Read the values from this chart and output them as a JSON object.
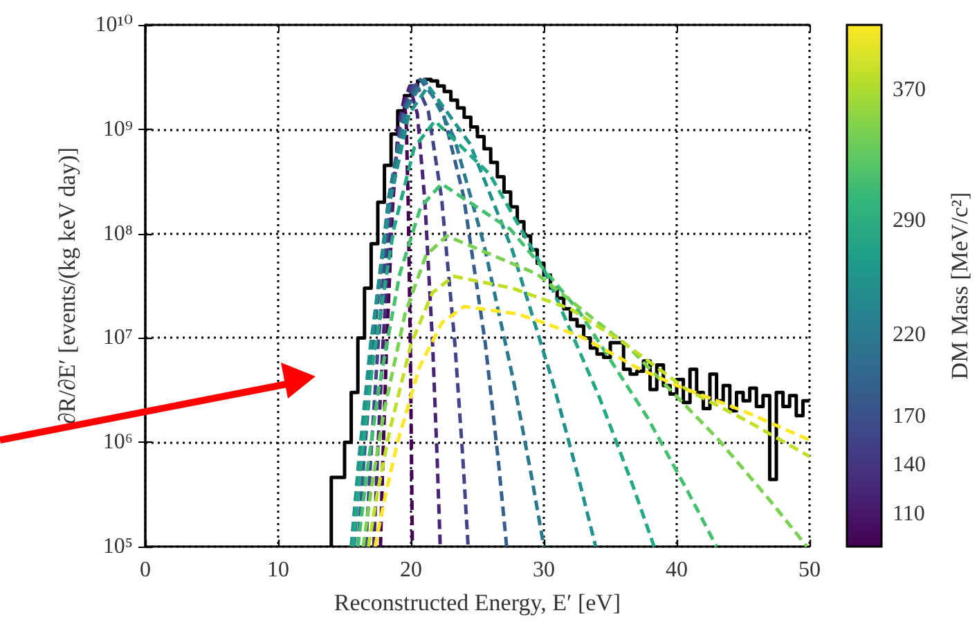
{
  "chart_data": {
    "type": "line",
    "xlabel": "Reconstructed Energy, E′ [eV]",
    "ylabel": "∂R/∂E′ [events/(kg keV day)]",
    "clabel": "DM Mass [MeV/c²]",
    "xlim": [
      0,
      50
    ],
    "xticks": [
      0,
      10,
      20,
      30,
      40,
      50
    ],
    "ylim": [
      100000,
      10000000000
    ],
    "log": "y",
    "yticks": [
      {
        "value": 100000,
        "label": "10⁵"
      },
      {
        "value": 1000000,
        "label": "10⁶"
      },
      {
        "value": 10000000,
        "label": "10⁷"
      },
      {
        "value": 100000000,
        "label": "10⁸"
      },
      {
        "value": 1000000000,
        "label": "10⁹"
      },
      {
        "value": 10000000000,
        "label": "10¹⁰"
      }
    ],
    "clim": [
      90,
      410
    ],
    "cticks": [
      110,
      140,
      170,
      220,
      290,
      370
    ],
    "grid": true,
    "line_style": "dashed",
    "series": [
      {
        "type": "histogram",
        "color": "#000000",
        "bins": [
          14,
          14.5,
          15,
          15.5,
          16,
          16.5,
          17,
          17.5,
          18,
          18.5,
          19,
          19.5,
          20,
          20.5,
          21,
          21.5,
          22,
          22.5,
          23,
          23.5,
          24,
          24.5,
          25,
          25.5,
          26,
          26.5,
          27,
          27.5,
          28,
          28.5,
          29,
          29.5,
          30,
          30.5,
          31,
          31.5,
          32,
          32.5,
          33,
          33.5,
          34,
          34.5,
          35,
          35.5,
          36,
          36.5,
          37,
          37.5,
          38,
          38.5,
          39,
          39.5,
          40,
          40.5,
          41,
          41.5,
          42,
          42.5,
          43,
          43.5,
          44,
          44.5,
          45,
          45.5,
          46,
          46.5,
          47,
          47.5,
          48,
          48.5,
          49,
          49.5,
          50
        ],
        "values": [
          460000,
          460000,
          1000000,
          3000000,
          10000000,
          30000000,
          80000000,
          200000000,
          450000000,
          900000000,
          1500000000,
          2100000000,
          2600000000,
          2900000000,
          3000000000,
          2900000000,
          2600000000,
          2300000000,
          1900000000,
          1600000000,
          1300000000,
          1050000000,
          850000000,
          650000000,
          480000000,
          350000000,
          250000000,
          180000000,
          130000000,
          95000000,
          70000000,
          52000000,
          40000000,
          30000000,
          24000000,
          19000000,
          15000000,
          13000000,
          10000000,
          8000000,
          7000000,
          6500000,
          9000000,
          9000000,
          5000000,
          4500000,
          4800000,
          6000000,
          3200000,
          5500000,
          3500000,
          2900000,
          4000000,
          2400000,
          5000000,
          3000000,
          2100000,
          4500000,
          2500000,
          3500000,
          2000000,
          3000000,
          2500000,
          3300000,
          2200000,
          2800000,
          440000,
          3000000,
          2200000,
          2800000,
          1800000,
          2500000
        ]
      },
      {
        "color": "#440154",
        "x": [
          17.7,
          17.88,
          18.15,
          18.6,
          19.05,
          19.5,
          19.65,
          19.8,
          19.95,
          20.04,
          20.1
        ],
        "values": [
          100000,
          660000,
          7600000,
          170000000,
          1070000000,
          2000000000,
          1070000000,
          170000000,
          7600000,
          660000,
          100000
        ]
      },
      {
        "color": "#482475",
        "x": [
          17.2,
          17.47,
          17.88,
          18.55,
          19.23,
          19.9,
          20.48,
          21.05,
          21.63,
          21.97,
          22.2
        ],
        "values": [
          100000,
          690000,
          8500000,
          200000000,
          1400000000,
          2600000000,
          1400000000,
          200000000,
          8500000,
          690000,
          100000
        ]
      },
      {
        "color": "#414487",
        "x": [
          16.6,
          16.97,
          17.53,
          18.45,
          19.38,
          20.3,
          21.3,
          22.3,
          23.3,
          23.9,
          24.3
        ],
        "values": [
          100000,
          710000,
          8900000,
          220000000,
          1500000000,
          2900000000,
          1500000000,
          220000000,
          8900000,
          710000,
          100000
        ]
      },
      {
        "color": "#355f8d",
        "x": [
          16,
          16.47,
          17.18,
          18.35,
          19.53,
          20.7,
          22.33,
          23.95,
          25.58,
          26.55,
          27.2
        ],
        "values": [
          100000,
          710000,
          9100000,
          230000000,
          1600000000,
          3000000000,
          1600000000,
          230000000,
          9100000,
          710000,
          100000
        ]
      },
      {
        "color": "#2a788e",
        "x": [
          15.7,
          16.23,
          17.03,
          18.35,
          19.68,
          21,
          23.25,
          25.5,
          27.75,
          29.1,
          30
        ],
        "values": [
          100000,
          710000,
          9100000,
          230000000,
          1600000000,
          3000000000,
          830000000,
          78000000,
          3700000,
          450000,
          100000
        ]
      },
      {
        "color": "#21918c",
        "x": [
          15.5,
          16.08,
          16.95,
          18.4,
          19.85,
          21.3,
          24.45,
          27.6,
          30.75,
          32.64,
          33.9
        ],
        "values": [
          100000,
          690000,
          8500000,
          200000000,
          1400000000,
          2600000000,
          720000000,
          71000000,
          3500000,
          440000,
          100000
        ]
      },
      {
        "color": "#22a884",
        "x": [
          15.6,
          16.22,
          17.15,
          18.7,
          20.25,
          21.8,
          25.93,
          30.05,
          34.18,
          36.65,
          38.3
        ],
        "values": [
          100000,
          600000,
          6100000,
          110000000,
          670000000,
          1200000000,
          370000000,
          44000000,
          2700000,
          400000,
          100000
        ]
      },
      {
        "color": "#44bf70",
        "x": [
          16,
          16.63,
          17.58,
          19.15,
          20.73,
          22.3,
          27.48,
          32.65,
          37.83,
          40.93,
          43
        ],
        "values": [
          100000,
          460000,
          3300000,
          41000000,
          180000000,
          300000000,
          110000000,
          18000000,
          1700000,
          320000,
          100000
        ]
      },
      {
        "color": "#7ad151",
        "x": [
          16.4,
          17.03,
          17.98,
          19.55,
          21.13,
          22.7,
          29.48,
          36.25,
          43.03,
          47.09,
          49.8
        ],
        "values": [
          100000,
          370000,
          2000000,
          17000000,
          62000000,
          95000000,
          41000000,
          8500000,
          1100000,
          270000,
          100000
        ]
      },
      {
        "color": "#bddf26",
        "x": [
          16.8,
          17.44,
          18.4,
          20,
          21.6,
          23.2,
          27.6,
          32,
          36,
          40.75,
          45.3,
          50
        ],
        "values": [
          100000,
          310000,
          1300000,
          8700000,
          27000000,
          39000000,
          30000000,
          19000000,
          9000000,
          3200000,
          1600000,
          730000
        ]
      },
      {
        "color": "#fde725",
        "x": [
          17.3,
          17.97,
          18.98,
          20.65,
          22.33,
          24,
          28,
          30,
          33,
          37,
          40,
          45,
          50
        ],
        "values": [
          100000,
          270000,
          1000000,
          5300000,
          14000000,
          20000000,
          17000000,
          14000000,
          10000000,
          5200000,
          3500000,
          2000000,
          1050000
        ]
      }
    ]
  }
}
